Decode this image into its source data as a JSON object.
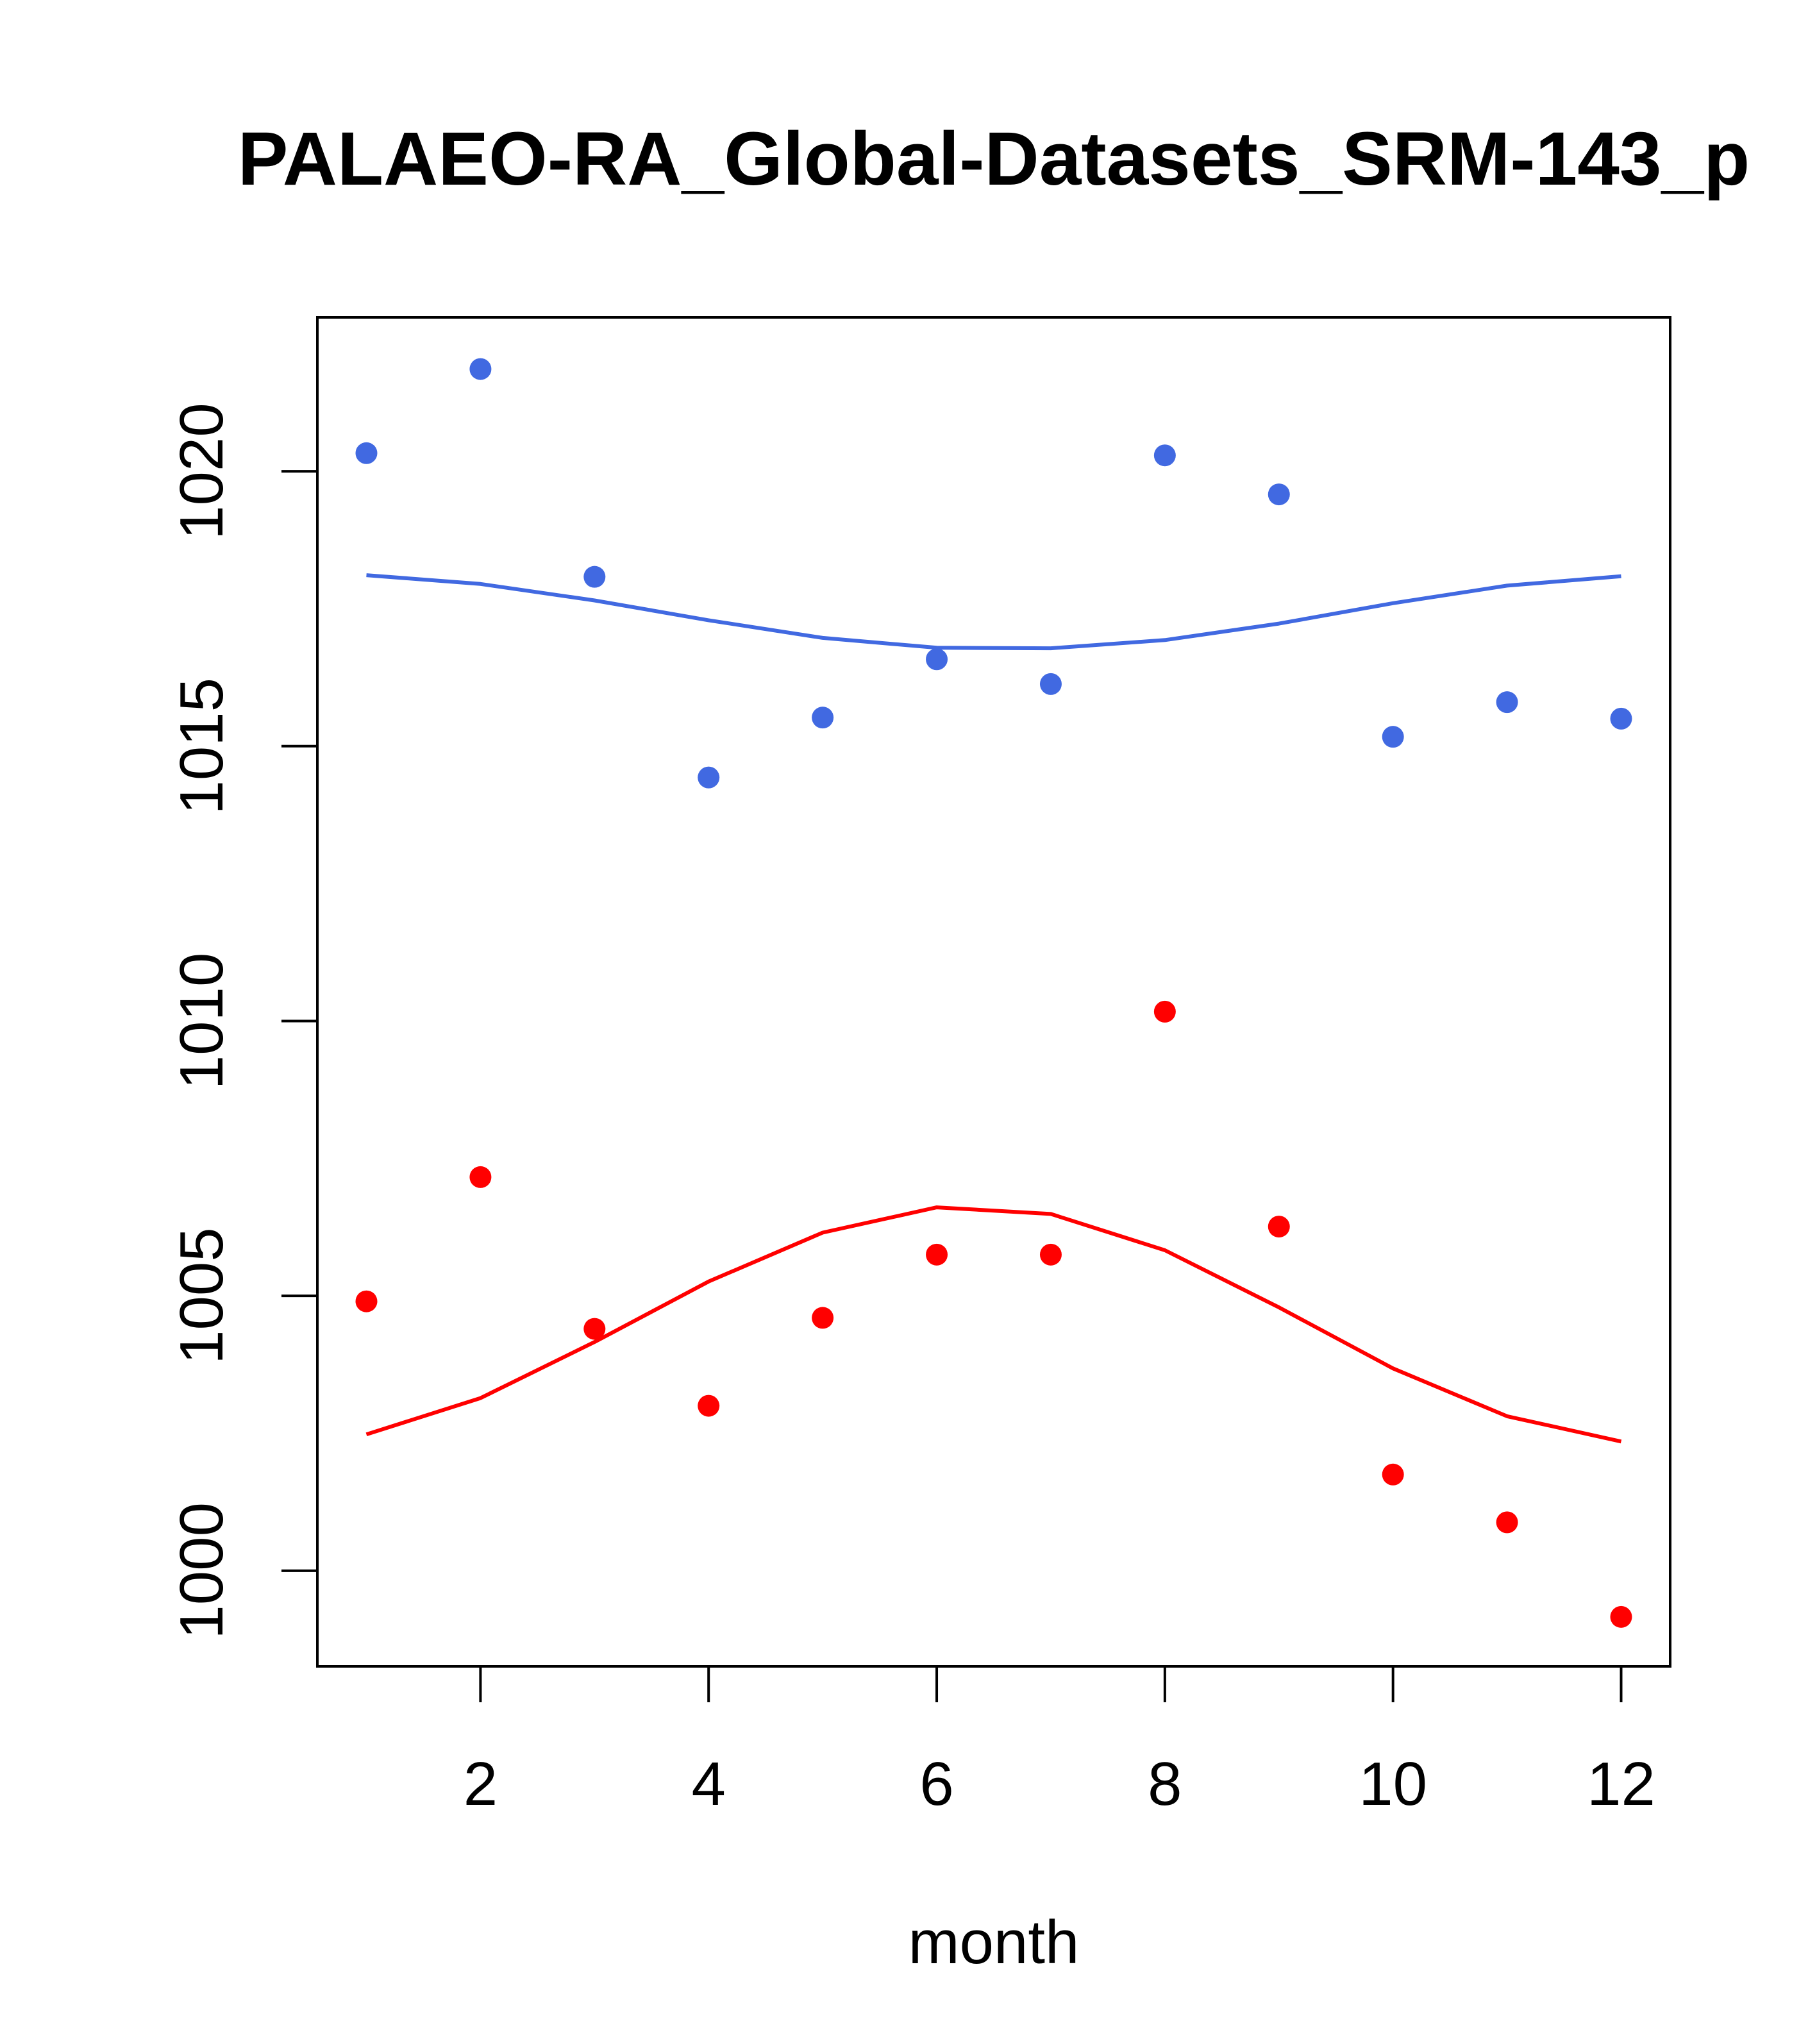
{
  "chart_data": {
    "type": "scatter",
    "title": "PALAEO-RA_Global-Datasets_SRM-143_p",
    "xlabel": "month",
    "ylabel": "",
    "xlim": [
      0.57,
      12.43
    ],
    "ylim": [
      998.26,
      1022.8
    ],
    "xticks": [
      2,
      4,
      6,
      8,
      10,
      12
    ],
    "yticks": [
      1000,
      1005,
      1010,
      1015,
      1020
    ],
    "grid": false,
    "series": [
      {
        "name": "upper points",
        "kind": "points",
        "color": "#4169e1",
        "x": [
          1,
          2,
          3,
          4,
          5,
          6,
          7,
          8,
          9,
          10,
          11,
          12
        ],
        "y": [
          1020.33,
          1021.86,
          1018.08,
          1014.43,
          1015.52,
          1016.58,
          1016.13,
          1020.29,
          1019.58,
          1015.17,
          1015.8,
          1015.5
        ]
      },
      {
        "name": "upper line",
        "kind": "line",
        "color": "#4169e1",
        "x": [
          1,
          2,
          3,
          4,
          5,
          6,
          7,
          8,
          9,
          10,
          11,
          12
        ],
        "y": [
          1018.11,
          1017.95,
          1017.65,
          1017.29,
          1016.97,
          1016.79,
          1016.78,
          1016.93,
          1017.23,
          1017.6,
          1017.92,
          1018.09
        ]
      },
      {
        "name": "lower points",
        "kind": "points",
        "color": "#ff0000",
        "x": [
          1,
          2,
          3,
          4,
          5,
          6,
          7,
          8,
          9,
          10,
          11,
          12
        ],
        "y": [
          1004.9,
          1007.16,
          1004.4,
          1003.0,
          1004.6,
          1005.75,
          1005.75,
          1010.17,
          1006.26,
          1001.75,
          1000.88,
          999.16
        ]
      },
      {
        "name": "lower line",
        "kind": "line",
        "color": "#ff0000",
        "x": [
          1,
          2,
          3,
          4,
          5,
          6,
          7,
          8,
          9,
          10,
          11,
          12
        ],
        "y": [
          1002.48,
          1003.14,
          1004.16,
          1005.26,
          1006.15,
          1006.61,
          1006.49,
          1005.83,
          1004.79,
          1003.68,
          1002.81,
          1002.35
        ]
      }
    ]
  }
}
